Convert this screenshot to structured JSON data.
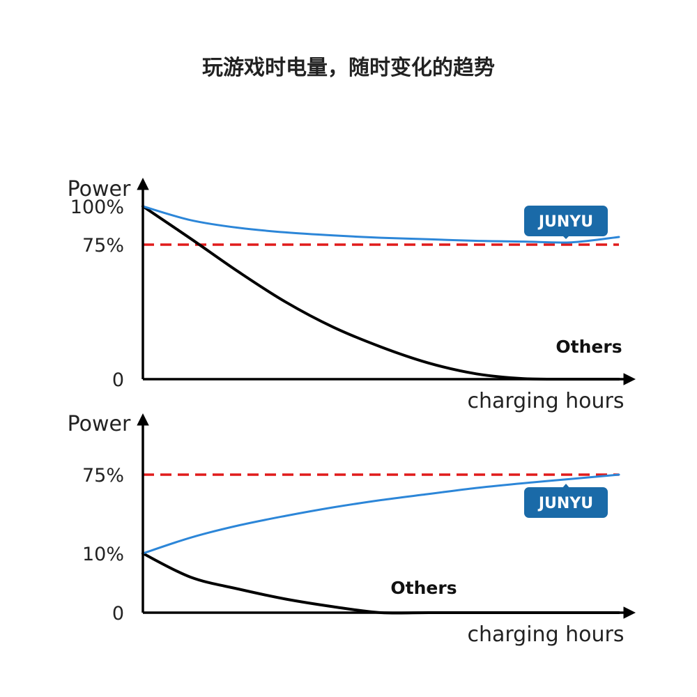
{
  "title": "玩游戏时电量，随时变化的趋势",
  "colors": {
    "junyu": "#2c86d8",
    "others": "#000000",
    "threshold": "#e01b1b",
    "badge": "#1a6aa8"
  },
  "chart_data": [
    {
      "type": "line",
      "ylabel": "Power",
      "xlabel": "charging hours",
      "yticks": [
        {
          "label": "0",
          "value": 0
        },
        {
          "label": "75%",
          "value": 75
        },
        {
          "label": "100%",
          "value": 100
        }
      ],
      "ylim": [
        0,
        100
      ],
      "xlim": [
        0,
        10
      ],
      "threshold": {
        "value": 75,
        "style": "dashed"
      },
      "series": [
        {
          "name": "JUNYU",
          "color": "#2c86d8",
          "x": [
            0,
            1,
            2,
            3,
            4,
            5,
            6,
            7,
            8,
            9,
            10
          ],
          "y": [
            100,
            91,
            86,
            83,
            81,
            79.5,
            78.5,
            77.5,
            77,
            76.5,
            80
          ]
        },
        {
          "name": "Others",
          "color": "#000000",
          "x": [
            0,
            1,
            2,
            3,
            4,
            5,
            6,
            7,
            8,
            9,
            10
          ],
          "y": [
            100,
            79,
            60,
            43,
            29,
            18,
            9,
            3,
            0.3,
            0,
            0
          ]
        }
      ]
    },
    {
      "type": "line",
      "ylabel": "Power",
      "xlabel": "charging hours",
      "yticks": [
        {
          "label": "0",
          "value": 0
        },
        {
          "label": "10%",
          "value": 10
        },
        {
          "label": "75%",
          "value": 75
        }
      ],
      "ylim": [
        0,
        90
      ],
      "xlim": [
        0,
        10
      ],
      "threshold": {
        "value": 75,
        "style": "dashed"
      },
      "series": [
        {
          "name": "JUNYU",
          "color": "#2c86d8",
          "x": [
            0,
            1,
            2,
            3,
            4,
            5,
            6,
            7,
            8,
            9,
            10
          ],
          "y": [
            10,
            23,
            33,
            41,
            48,
            54,
            59,
            64,
            68,
            71.5,
            75
          ]
        },
        {
          "name": "Others",
          "color": "#000000",
          "x": [
            0,
            1,
            2,
            3,
            4,
            5,
            6,
            7,
            8,
            9,
            10
          ],
          "y": [
            10,
            6,
            4,
            2.3,
            1,
            0,
            0,
            0,
            0,
            0,
            0
          ]
        }
      ]
    }
  ]
}
